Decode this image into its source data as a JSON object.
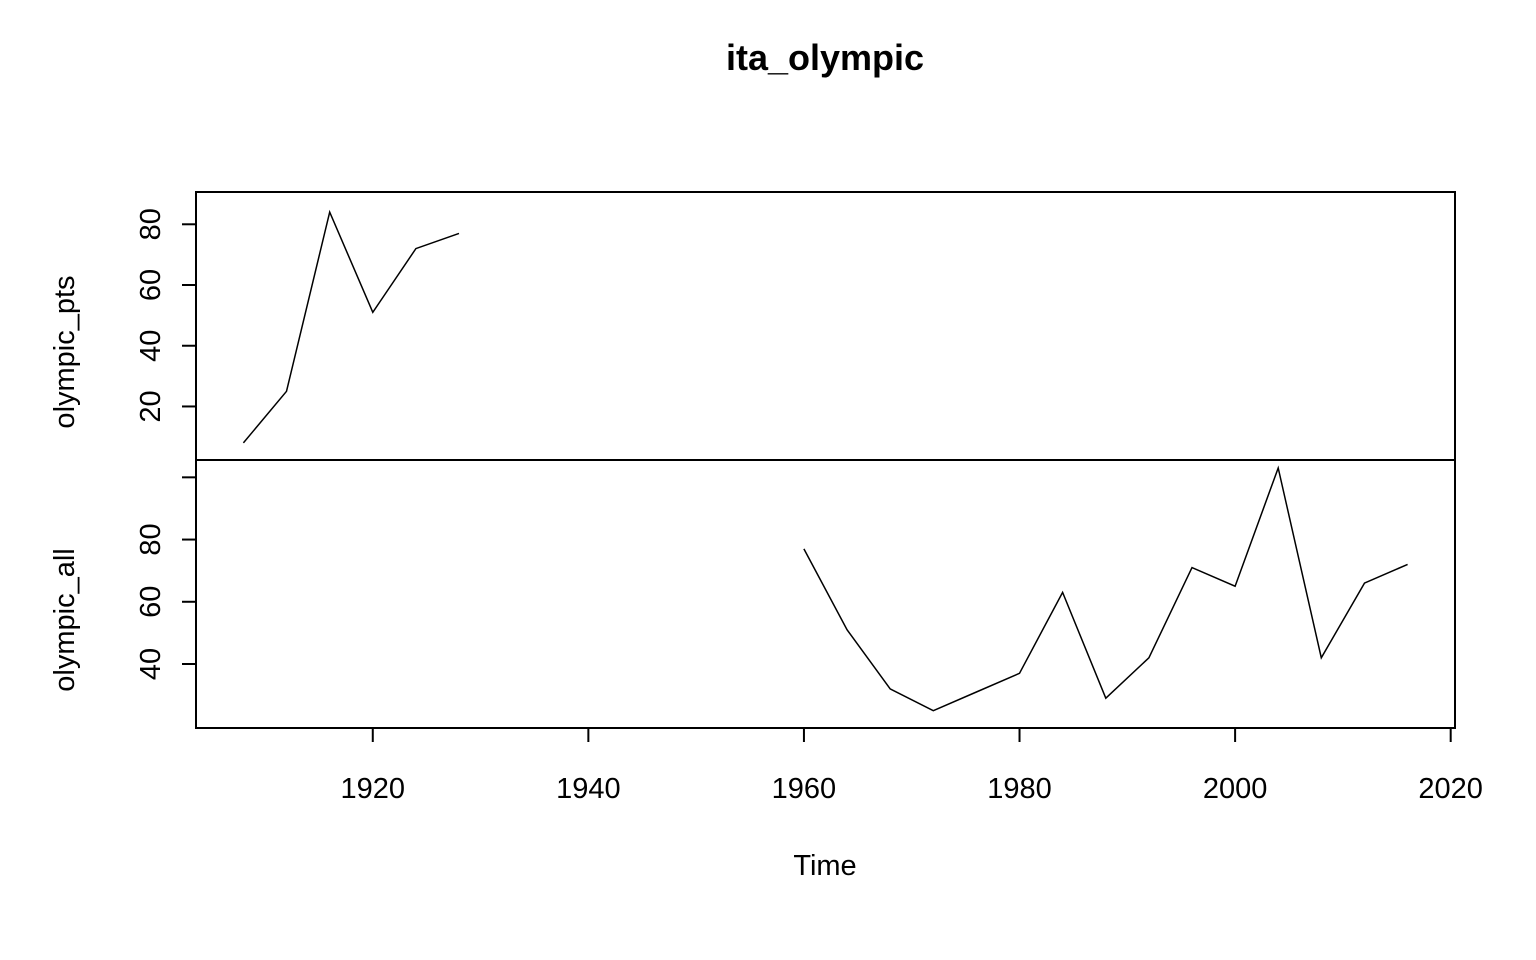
{
  "chart_data": {
    "type": "line",
    "title": "ita_olympic",
    "xlabel": "Time",
    "x_ticks": [
      1920,
      1940,
      1960,
      1980,
      2000,
      2020
    ],
    "xlim": [
      1903.6,
      2020.4
    ],
    "panels": [
      {
        "name": "olympic_pts",
        "ylabel": "olympic_pts",
        "ylim": [
          5,
          88
        ],
        "y_ticks": [
          20,
          40,
          60,
          80
        ],
        "series": [
          {
            "x": [
              1908,
              1912,
              1916,
              1920,
              1924,
              1928
            ],
            "values": [
              8,
              25,
              84,
              51,
              72,
              77
            ]
          }
        ]
      },
      {
        "name": "olympic_all",
        "ylabel": "olympic_all",
        "ylim": [
          22,
          103
        ],
        "y_ticks": [
          40,
          60,
          80,
          100
        ],
        "y_tick_labels": [
          "40",
          "60",
          "80",
          ""
        ],
        "series": [
          {
            "x": [
              1960,
              1964,
              1968,
              1972,
              1976,
              1980,
              1984,
              1988,
              1992,
              1996,
              2000,
              2004,
              2008,
              2012,
              2016
            ],
            "values": [
              77,
              51,
              32,
              25,
              31,
              37,
              63,
              29,
              42,
              71,
              65,
              103,
              42,
              66,
              72
            ]
          }
        ]
      }
    ],
    "grid": false,
    "legend": "none"
  }
}
